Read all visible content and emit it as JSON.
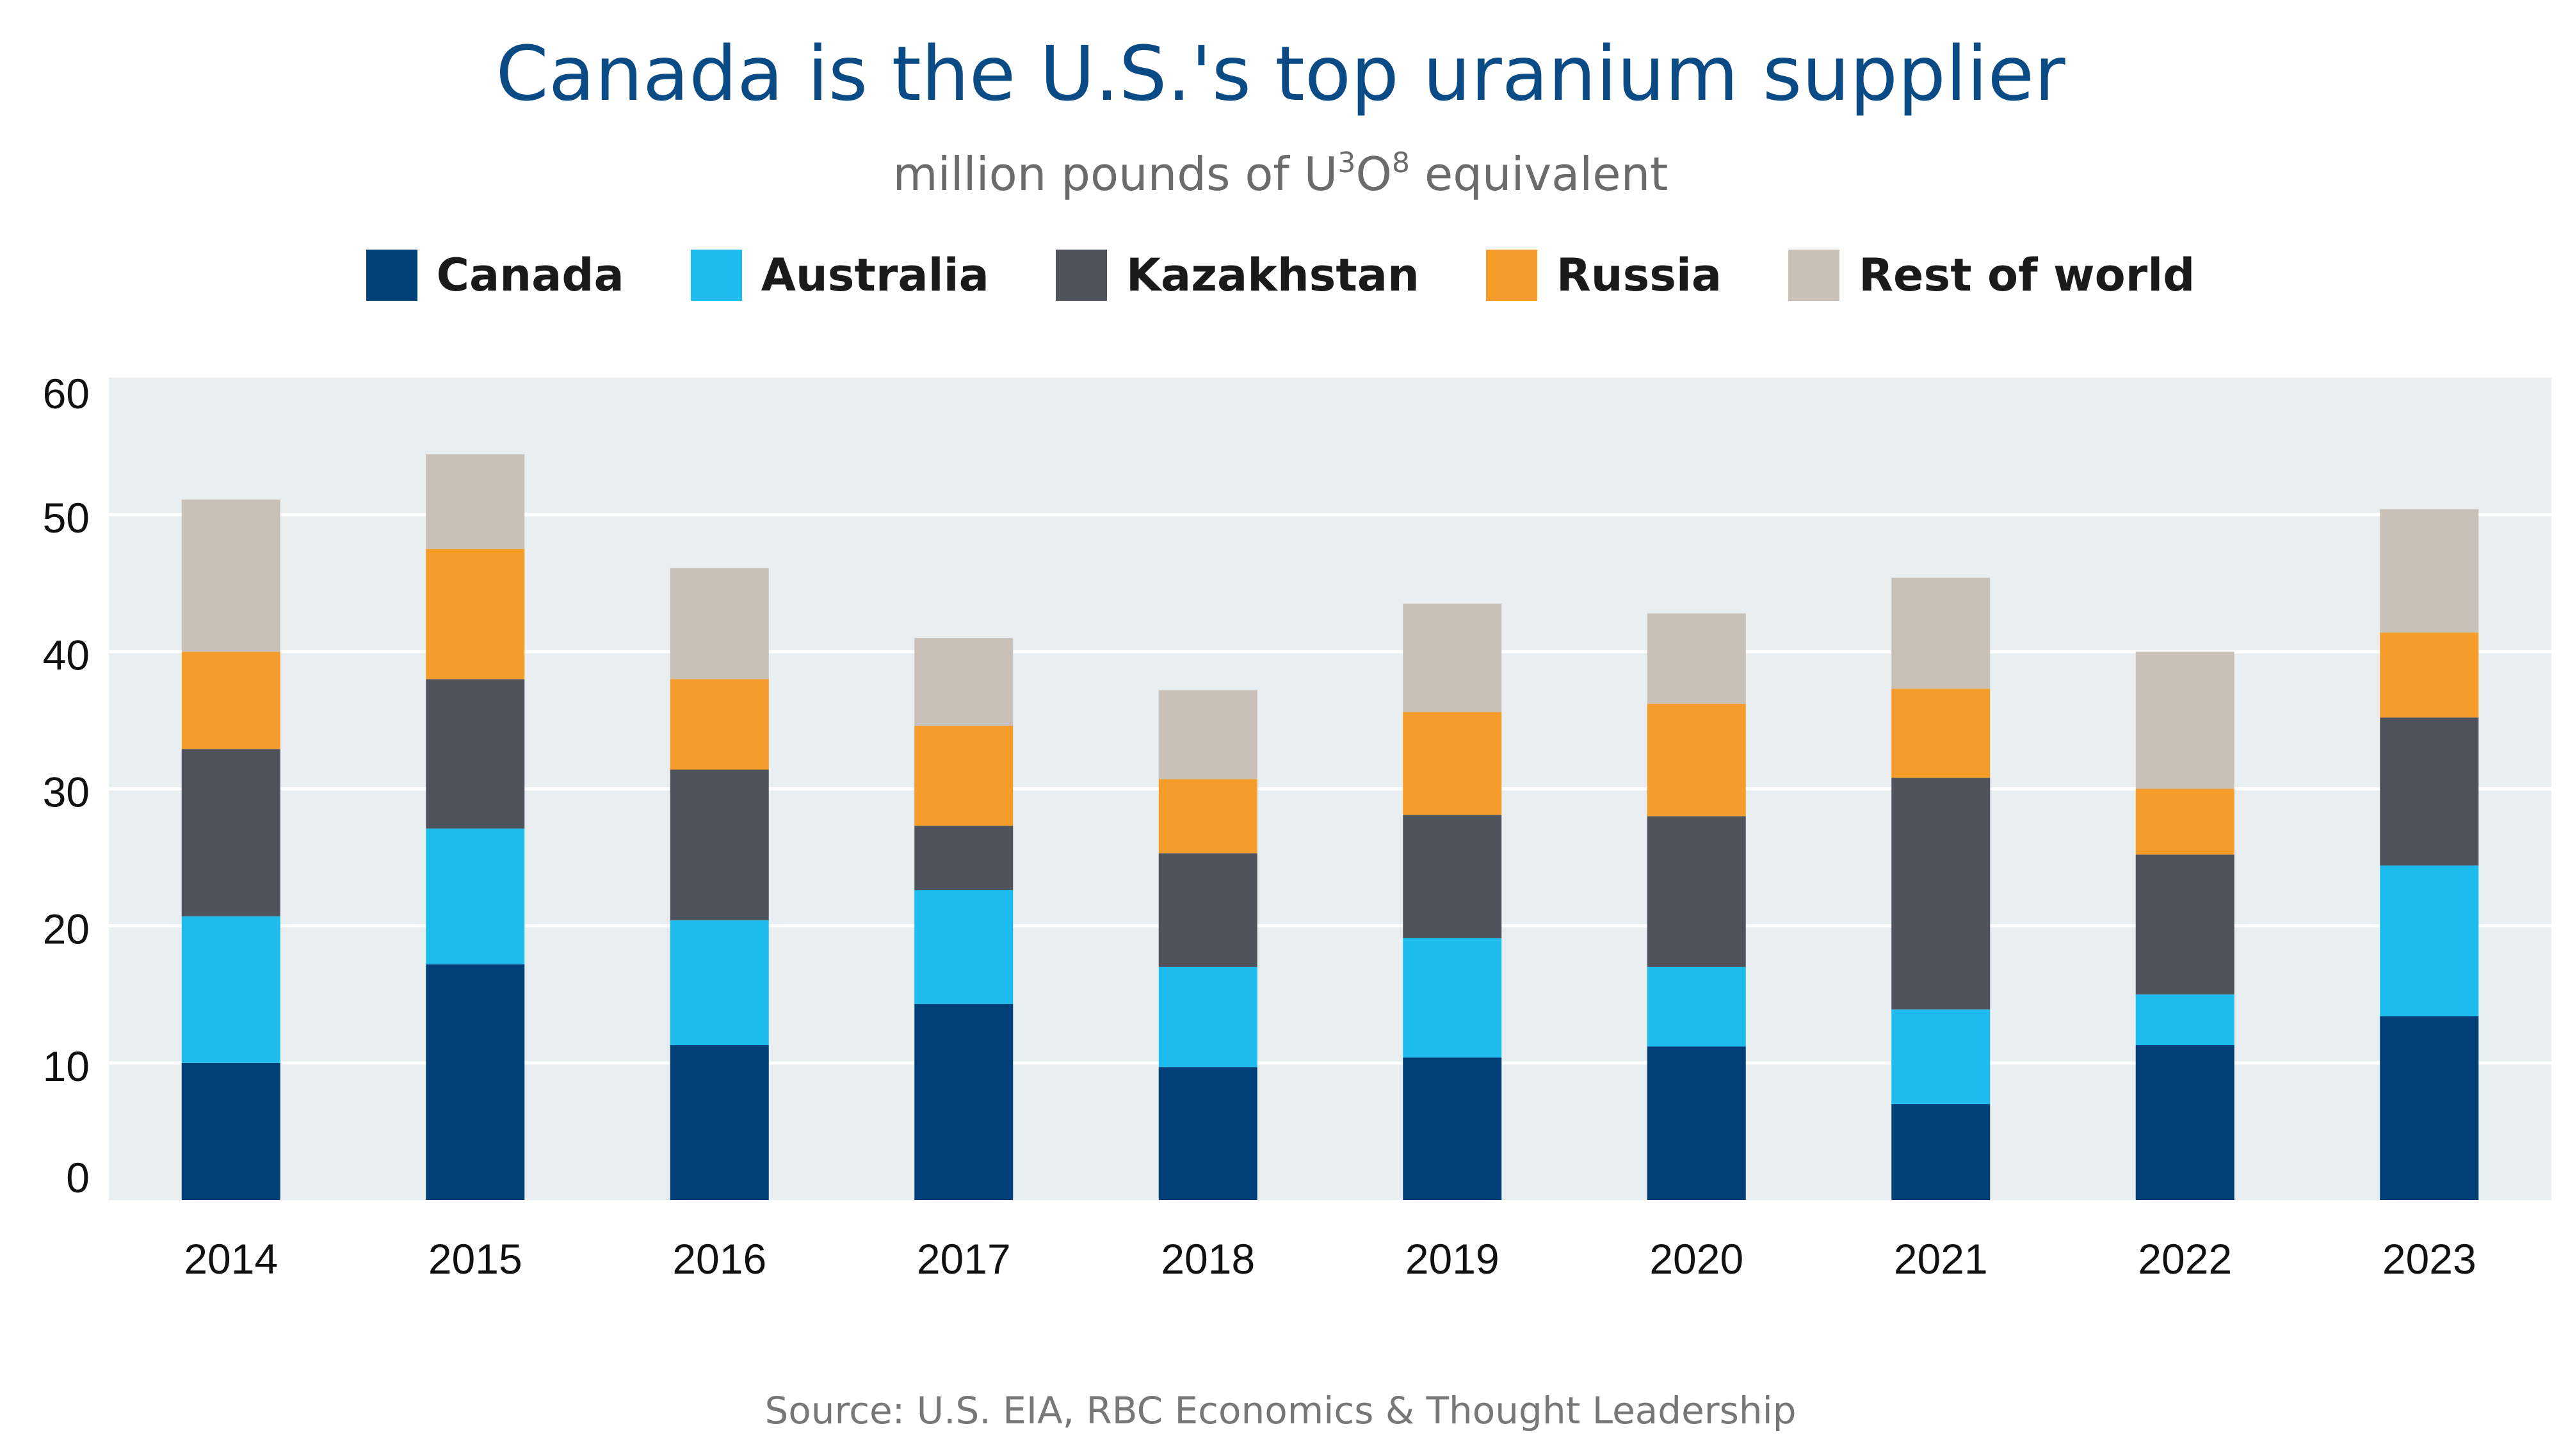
{
  "title": "Canada is the U.S.'s top uranium supplier",
  "subtitle": {
    "prefix": "million pounds of U",
    "sup1": "3",
    "middle": "O",
    "sup2": "8",
    "suffix": " equivalent"
  },
  "source": "Source: U.S. EIA, RBC Economics & Thought Leadership",
  "colors": {
    "Canada": "#003f78",
    "Australia": "#1dbbee",
    "Kazakhstan": "#4f535b",
    "Russia": "#f59c2a",
    "Rest of world": "#c9c1b8",
    "plot_bg": "#e9eef1",
    "grid": "#ffffff"
  },
  "chart_data": {
    "type": "bar",
    "stacked": true,
    "categories": [
      "2014",
      "2015",
      "2016",
      "2017",
      "2018",
      "2019",
      "2020",
      "2021",
      "2022",
      "2023"
    ],
    "series": [
      {
        "name": "Canada",
        "values": [
          10.0,
          17.2,
          11.3,
          14.3,
          9.7,
          10.4,
          11.2,
          7.0,
          11.3,
          13.4
        ]
      },
      {
        "name": "Australia",
        "values": [
          10.7,
          9.9,
          9.1,
          8.3,
          7.3,
          8.7,
          5.8,
          6.9,
          3.7,
          11.0
        ]
      },
      {
        "name": "Kazakhstan",
        "values": [
          12.2,
          10.9,
          11.0,
          4.7,
          8.3,
          9.0,
          11.0,
          16.9,
          10.2,
          10.8
        ]
      },
      {
        "name": "Russia",
        "values": [
          7.1,
          9.5,
          6.6,
          7.3,
          5.4,
          7.5,
          8.2,
          6.5,
          4.8,
          6.2
        ]
      },
      {
        "name": "Rest of world",
        "values": [
          11.1,
          6.9,
          8.1,
          6.4,
          6.5,
          7.9,
          6.6,
          8.1,
          10.0,
          9.0
        ]
      }
    ],
    "yticks": [
      "0",
      "10",
      "20",
      "30",
      "40",
      "50",
      "60"
    ],
    "ylim": [
      0,
      60
    ],
    "grid": true,
    "legend": "top-center"
  }
}
